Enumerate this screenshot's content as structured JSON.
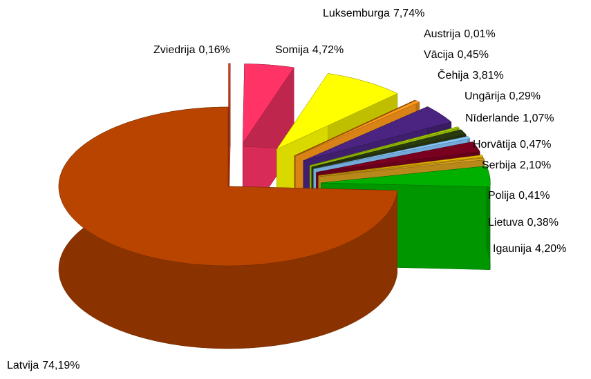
{
  "chart_data": {
    "type": "pie3d",
    "categories": [
      "Zviedrija",
      "Somija",
      "Luksemburga",
      "Austrija",
      "Vācija",
      "Čehija",
      "Ungārija",
      "Nīderlande",
      "Horvātija",
      "Serbija",
      "Polija",
      "Lietuva",
      "Igaunija",
      "Latvija"
    ],
    "values": [
      0.16,
      4.72,
      7.74,
      0.01,
      0.45,
      3.81,
      0.29,
      1.07,
      0.47,
      2.1,
      0.41,
      0.38,
      4.2,
      74.19
    ],
    "value_labels": [
      "0,16%",
      "4,72%",
      "7,74%",
      "0,01%",
      "0,45%",
      "3,81%",
      "0,29%",
      "1,07%",
      "0,47%",
      "2,10%",
      "0,41%",
      "0,38%",
      "4,20%",
      "74,19%"
    ],
    "colors": [
      "#e8401c",
      "#ff3366",
      "#ffff00",
      "#c86400",
      "#ff9a1a",
      "#4a2480",
      "#a8d400",
      "#2a3a10",
      "#88c8ff",
      "#7a0020",
      "#e8b800",
      "#d8a020",
      "#00b000",
      "#b84400"
    ]
  }
}
